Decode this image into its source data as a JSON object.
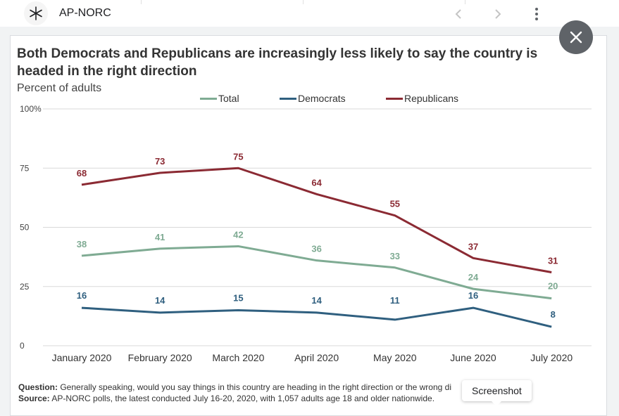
{
  "header": {
    "brand": "AP-NORC"
  },
  "figure": {
    "title": "Both Democrats and Republicans are increasingly less likely to say the country is headed in the right direction",
    "subtitle": "Percent of adults",
    "question_label": "Question:",
    "question_text": "Generally speaking, would you say things in this country are heading in the right direction or the wrong di",
    "source_label": "Source:",
    "source_text": "AP-NORC polls, the latest conducted July 16-20, 2020, with 1,057 adults age 18 and older nationwide."
  },
  "tooltip": {
    "label": "Screenshot"
  },
  "colors": {
    "total": "#7fab93",
    "democrats": "#2f5f7f",
    "republicans": "#8b2a33",
    "grid": "#d9d9d9"
  },
  "chart_data": {
    "type": "line",
    "title": "Both Democrats and Republicans are increasingly less likely to say the country is headed in the right direction",
    "ylabel": "Percent of adults",
    "xlabel": "",
    "categories": [
      "January 2020",
      "February 2020",
      "March 2020",
      "April 2020",
      "May 2020",
      "June 2020",
      "July 2020"
    ],
    "y_ticks": [
      "0",
      "25",
      "50",
      "75",
      "100%"
    ],
    "ylim": [
      0,
      100
    ],
    "series": [
      {
        "name": "Total",
        "key": "total",
        "values": [
          38,
          41,
          42,
          36,
          33,
          24,
          20
        ]
      },
      {
        "name": "Democrats",
        "key": "democrats",
        "values": [
          16,
          14,
          15,
          14,
          11,
          16,
          8
        ]
      },
      {
        "name": "Republicans",
        "key": "republicans",
        "values": [
          68,
          73,
          75,
          64,
          55,
          37,
          31
        ]
      }
    ]
  }
}
